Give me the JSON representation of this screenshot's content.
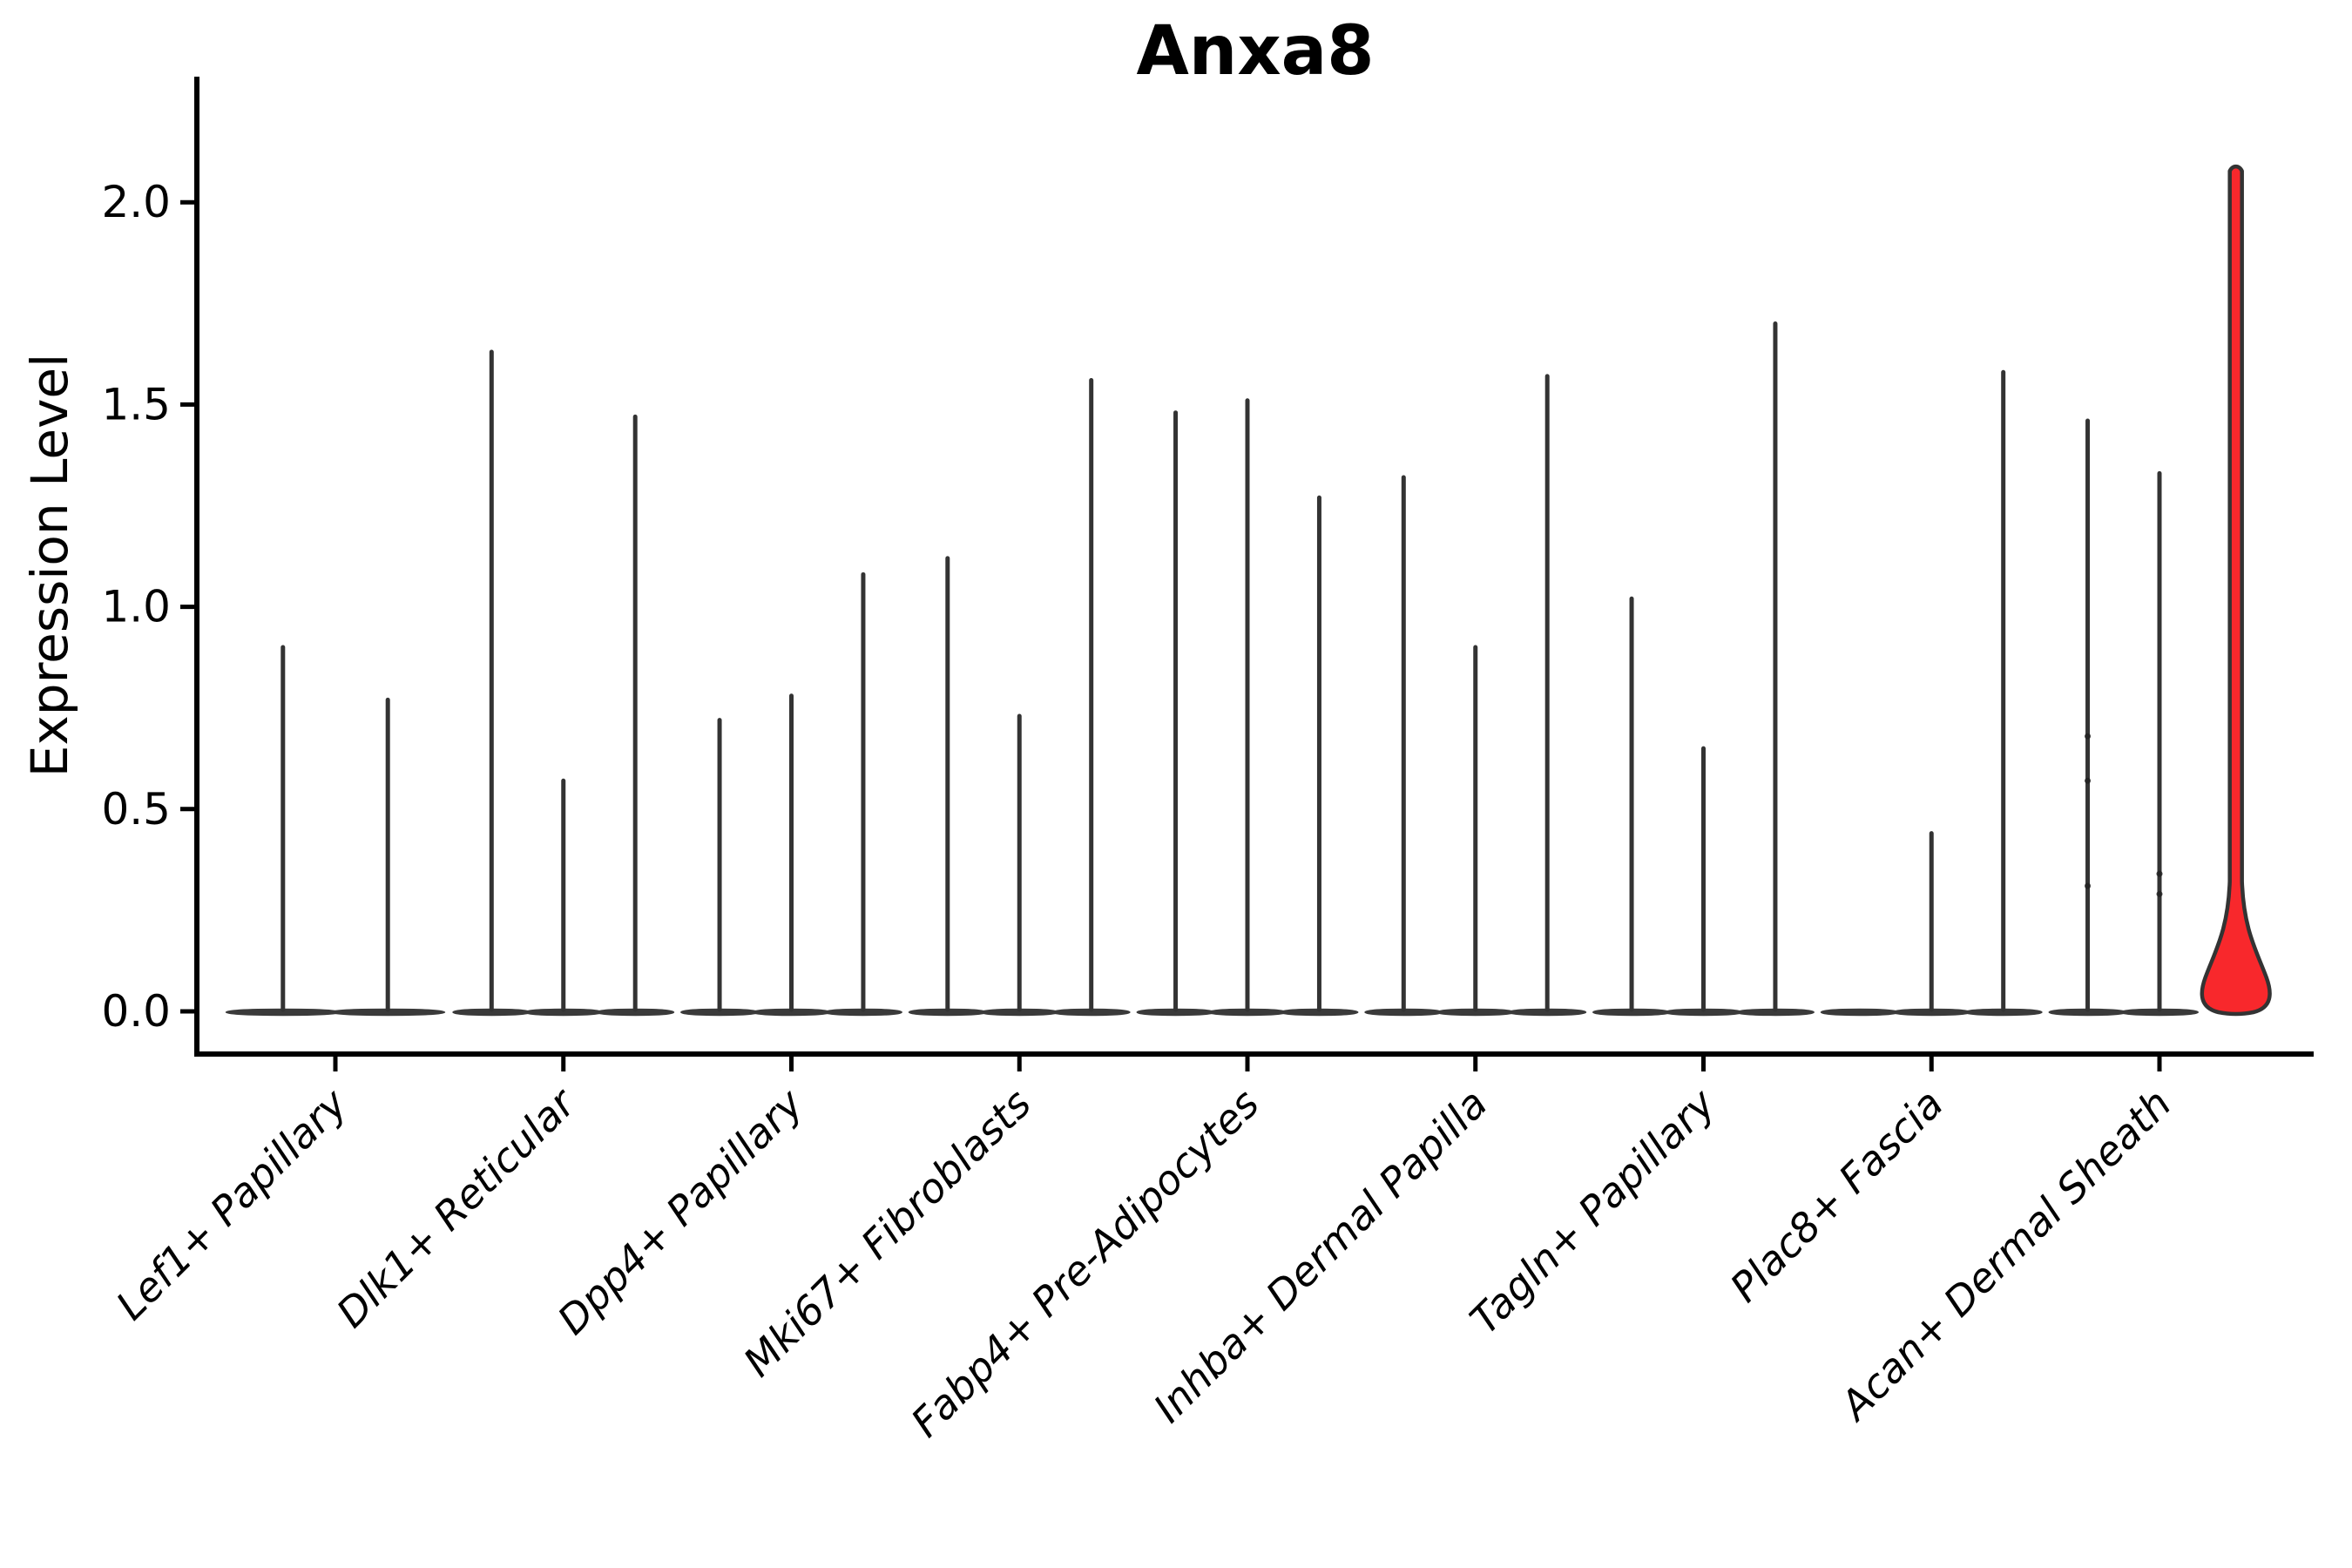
{
  "title": "Anxa8",
  "axes": {
    "ylabel": "Expression Level",
    "xlabel": "",
    "ytick_labels": [
      "0.0",
      "0.5",
      "1.0",
      "1.5",
      "2.0"
    ]
  },
  "chart_data": {
    "type": "violin",
    "title": "Anxa8",
    "ylabel": "Expression Level",
    "xlabel": "",
    "ylim": [
      -0.11,
      2.32
    ],
    "yticks": [
      0.0,
      0.5,
      1.0,
      1.5,
      2.0
    ],
    "grid": false,
    "legend": false,
    "description": "Stacked/dodged violin plot of Anxa8 expression per fibroblast cluster; violins are near-zero flat bodies with thin density spikes; the third violin of Acan+ Dermal Sheath is highlighted red",
    "categories": [
      "Lef1+ Papillary",
      "Dlk1+ Reticular",
      "Dpp4+ Papillary",
      "Mki67+ Fibroblasts",
      "Fabp4+ Pre-Adipocytes",
      "Inhba+ Dermal Papilla",
      "Tagln+ Papillary",
      "Plac8+ Fascia",
      "Acan+ Dermal Sheath"
    ],
    "groups": [
      {
        "category": "Lef1+ Papillary",
        "violins": [
          {
            "pos": -0.23,
            "peak": 0.9
          },
          {
            "pos": 0.23,
            "peak": 0.77
          }
        ]
      },
      {
        "category": "Dlk1+ Reticular",
        "violins": [
          {
            "pos": -0.315,
            "peak": 1.63
          },
          {
            "pos": 0,
            "peak": 0.57
          },
          {
            "pos": 0.315,
            "peak": 1.47
          }
        ]
      },
      {
        "category": "Dpp4+ Papillary",
        "violins": [
          {
            "pos": -0.315,
            "peak": 0.72
          },
          {
            "pos": 0,
            "peak": 0.78
          },
          {
            "pos": 0.315,
            "peak": 1.08
          }
        ]
      },
      {
        "category": "Mki67+ Fibroblasts",
        "violins": [
          {
            "pos": -0.315,
            "peak": 1.12
          },
          {
            "pos": 0,
            "peak": 0.73
          },
          {
            "pos": 0.315,
            "peak": 1.56
          }
        ]
      },
      {
        "category": "Fabp4+ Pre-Adipocytes",
        "violins": [
          {
            "pos": -0.315,
            "peak": 1.48
          },
          {
            "pos": 0,
            "peak": 1.51
          },
          {
            "pos": 0.315,
            "peak": 1.27
          }
        ]
      },
      {
        "category": "Inhba+ Dermal Papilla",
        "violins": [
          {
            "pos": -0.315,
            "peak": 1.32
          },
          {
            "pos": 0,
            "peak": 0.9
          },
          {
            "pos": 0.315,
            "peak": 1.57
          }
        ]
      },
      {
        "category": "Tagln+ Papillary",
        "violins": [
          {
            "pos": -0.315,
            "peak": 1.02
          },
          {
            "pos": 0,
            "peak": 0.65
          },
          {
            "pos": 0.315,
            "peak": 1.7
          }
        ]
      },
      {
        "category": "Plac8+ Fascia",
        "violins": [
          {
            "pos": -0.315,
            "peak": null
          },
          {
            "pos": 0,
            "peak": 0.44
          },
          {
            "pos": 0.315,
            "peak": 1.58
          }
        ]
      },
      {
        "category": "Acan+ Dermal Sheath",
        "violins": [
          {
            "pos": -0.315,
            "peak": 1.46,
            "points": [
              0.68,
              0.57,
              0.31
            ]
          },
          {
            "pos": 0,
            "peak": 1.33,
            "points": [
              0.34,
              0.29
            ]
          },
          {
            "pos": 0.335,
            "peak": 2.09,
            "highlighted": true
          }
        ]
      }
    ],
    "highlight": {
      "category": "Acan+ Dermal Sheath",
      "violin_index": 3,
      "peak": 2.09,
      "color": "#f8282c"
    },
    "colors": {
      "highlight_fill": "#f8282c",
      "violin_stroke": "#333333",
      "body_fill": "#3a3a3a",
      "axis": "#000000",
      "text": "#000000"
    }
  }
}
